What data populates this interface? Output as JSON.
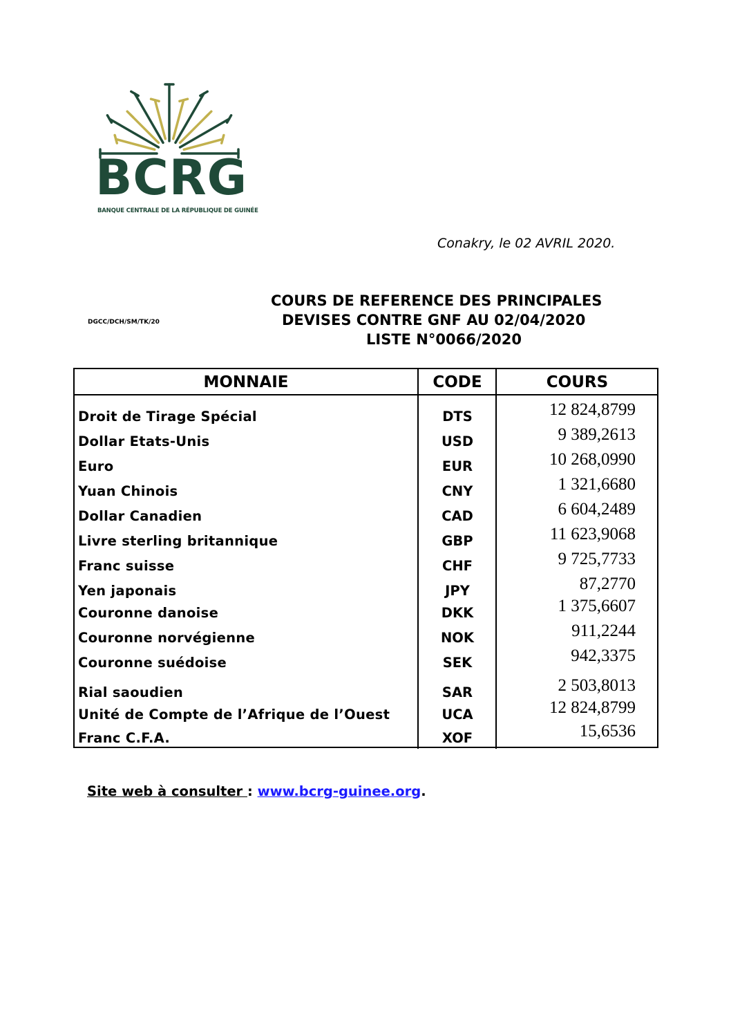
{
  "logo": {
    "text": "BCRG",
    "subtitle": "BANQUE CENTRALE DE LA RÉPUBLIQUE DE GUINÉE",
    "colors": {
      "green": "#1f4a38",
      "gold": "#c2b14e"
    }
  },
  "date_line": "Conakry, le 02 AVRIL 2020.",
  "reference": "DGCC/DCH/SM/TK/20",
  "title": {
    "line1": "COURS DE REFERENCE DES PRINCIPALES",
    "line2": "DEVISES CONTRE GNF AU  02/04/2020",
    "line3": "LISTE N°0066/2020"
  },
  "table": {
    "headers": {
      "currency": "MONNAIE",
      "code": "CODE",
      "rate": "COURS"
    },
    "rows": [
      {
        "name": "Droit de Tirage Spécial",
        "code": "DTS",
        "rate": "12 824,8799"
      },
      {
        "name": "Dollar Etats-Unis",
        "code": "USD",
        "rate": "9 389,2613"
      },
      {
        "name": "Euro",
        "code": "EUR",
        "rate": "10 268,0990"
      },
      {
        "name": "Yuan Chinois",
        "code": "CNY",
        "rate": "1 321,6680"
      },
      {
        "name": "Dollar Canadien",
        "code": "CAD",
        "rate": "6 604,2489"
      },
      {
        "name": "Livre sterling britannique",
        "code": "GBP",
        "rate": "11 623,9068"
      },
      {
        "name": "Franc suisse",
        "code": "CHF",
        "rate": "9 725,7733"
      },
      {
        "name": "Yen japonais",
        "code": "JPY",
        "rate": "87,2770"
      },
      {
        "name": "Couronne danoise",
        "code": "DKK",
        "rate": "1 375,6607"
      },
      {
        "name": "Couronne norvégienne",
        "code": "NOK",
        "rate": "911,2244"
      },
      {
        "name": "Couronne suédoise",
        "code": "SEK",
        "rate": "942,3375"
      },
      {
        "name": "Rial saoudien",
        "code": "SAR",
        "rate": "2 503,8013"
      },
      {
        "name": "Unité de Compte de l’Afrique de l’Ouest",
        "code": "UCA",
        "rate": "12 824,8799"
      },
      {
        "name": "Franc C.F.A.",
        "code": "XOF",
        "rate": "15,6536"
      }
    ]
  },
  "footer": {
    "label": "Site web à consulter ",
    "sep": ": ",
    "link": "www.bcrg-guinee.org",
    "end": "."
  }
}
